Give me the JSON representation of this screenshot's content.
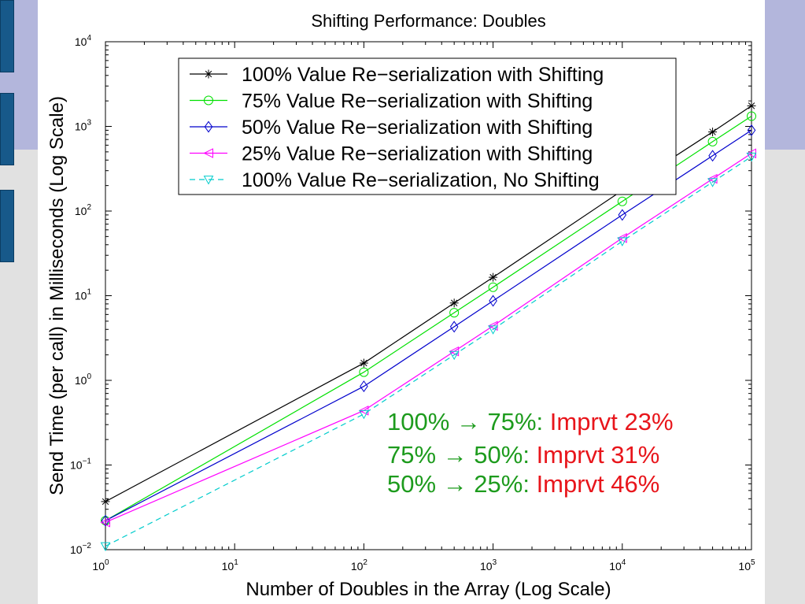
{
  "chart_data": {
    "type": "line",
    "title": "Shifting Performance: Doubles",
    "xlabel": "Number of Doubles in the Array (Log Scale)",
    "ylabel": "Send Time (per call) in Milliseconds (Log Scale)",
    "xscale": "log",
    "yscale": "log",
    "xlim": [
      1,
      100000
    ],
    "ylim": [
      0.01,
      10000
    ],
    "xticks": [
      {
        "value": 1,
        "base": "10",
        "exp": "0"
      },
      {
        "value": 10,
        "base": "10",
        "exp": "1"
      },
      {
        "value": 100,
        "base": "10",
        "exp": "2"
      },
      {
        "value": 1000,
        "base": "10",
        "exp": "3"
      },
      {
        "value": 10000,
        "base": "10",
        "exp": "4"
      },
      {
        "value": 100000,
        "base": "10",
        "exp": "5"
      }
    ],
    "yticks": [
      {
        "value": 0.01,
        "base": "10",
        "exp": "−2"
      },
      {
        "value": 0.1,
        "base": "10",
        "exp": "−1"
      },
      {
        "value": 1,
        "base": "10",
        "exp": "0"
      },
      {
        "value": 10,
        "base": "10",
        "exp": "1"
      },
      {
        "value": 100,
        "base": "10",
        "exp": "2"
      },
      {
        "value": 1000,
        "base": "10",
        "exp": "3"
      },
      {
        "value": 10000,
        "base": "10",
        "exp": "4"
      }
    ],
    "grid": false,
    "legend_position": "top",
    "series": [
      {
        "name": "100% Value Re−serialization with Shifting",
        "color": "#000000",
        "marker": "star",
        "dash": "solid",
        "x": [
          1,
          100,
          500,
          1000,
          10000,
          50000,
          100000
        ],
        "y": [
          0.037,
          1.6,
          8.2,
          16.5,
          175,
          860,
          1750
        ]
      },
      {
        "name": "75% Value Re−serialization with Shifting",
        "color": "#00e000",
        "marker": "circle",
        "dash": "solid",
        "x": [
          1,
          100,
          500,
          1000,
          10000,
          50000,
          100000
        ],
        "y": [
          0.022,
          1.25,
          6.3,
          12.6,
          130,
          660,
          1320
        ]
      },
      {
        "name": "50% Value Re−serialization with Shifting",
        "color": "#0000cc",
        "marker": "diamond",
        "dash": "solid",
        "x": [
          1,
          100,
          500,
          1000,
          10000,
          50000,
          100000
        ],
        "y": [
          0.022,
          0.85,
          4.3,
          8.7,
          90,
          450,
          900
        ]
      },
      {
        "name": "25% Value Re−serialization with Shifting",
        "color": "#ff00ff",
        "marker": "triangle-left",
        "dash": "solid",
        "x": [
          1,
          100,
          500,
          1000,
          10000,
          50000,
          100000
        ],
        "y": [
          0.021,
          0.44,
          2.2,
          4.4,
          48,
          240,
          480
        ]
      },
      {
        "name": "100% Value Re−serialization, No Shifting",
        "color": "#00cccc",
        "marker": "triangle-down",
        "dash": "dashed",
        "x": [
          1,
          100,
          500,
          1000,
          10000,
          50000,
          100000
        ],
        "y": [
          0.011,
          0.4,
          2.0,
          4.0,
          44,
          220,
          440
        ]
      }
    ],
    "annotations": [
      {
        "lhs": "100% → 75%:",
        "improvement": "Imprvt 23%"
      },
      {
        "lhs": "75% → 50%:",
        "improvement": "Imprvt 31%"
      },
      {
        "lhs": "50% → 25%:",
        "improvement": "Imprvt 46%"
      }
    ]
  }
}
